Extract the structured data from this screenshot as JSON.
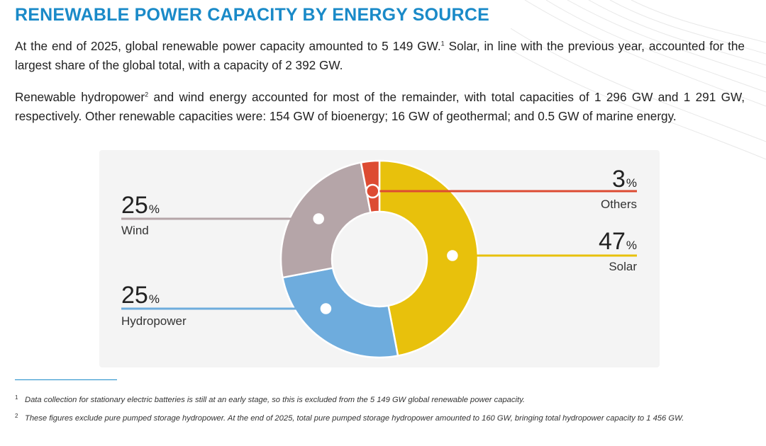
{
  "page": {
    "title": "RENEWABLE POWER CAPACITY BY ENERGY SOURCE",
    "paragraph1": {
      "text_a": "At the end of 2025, global renewable power capacity amounted to 5 149 GW.",
      "sup": "1",
      "text_b": " Solar, in line with the previous year, accounted for the largest share of the global total, with a capacity of 2 392 GW."
    },
    "paragraph2": {
      "text_a": "Renewable hydropower",
      "sup": "2",
      "text_b": " and wind energy accounted for most of the remainder, with total capacities of 1 296 GW and 1 291 GW, respectively. Other renewable capacities were: 154 GW of bioenergy; 16 GW of geothermal; and 0.5 GW of marine energy."
    },
    "footnotes": [
      {
        "mark": "1",
        "text": "Data collection for stationary electric batteries is still at an early stage, so this is excluded from the 5 149 GW global renewable power capacity."
      },
      {
        "mark": "2",
        "text": "These figures exclude pure pumped storage hydropower. At the end of 2025, total pure pumped storage hydropower amounted to 160 GW, bringing total hydropower capacity to 1 456 GW."
      }
    ]
  },
  "colors": {
    "title": "#1a8ac8",
    "solar": "#e8c10c",
    "hydropower": "#6eacdd",
    "wind": "#b5a5a8",
    "others": "#dd4b32",
    "panel": "#f4f4f4"
  },
  "chart_data": {
    "type": "pie",
    "variant": "donut",
    "unit": "%",
    "categories": [
      "Solar",
      "Hydropower",
      "Wind",
      "Others"
    ],
    "values": [
      47,
      25,
      25,
      3
    ],
    "labels": [
      {
        "category": "Solar",
        "value": "47",
        "unit": "%"
      },
      {
        "category": "Hydropower",
        "value": "25",
        "unit": "%"
      },
      {
        "category": "Wind",
        "value": "25",
        "unit": "%"
      },
      {
        "category": "Others",
        "value": "3",
        "unit": "%"
      }
    ],
    "legend": "callout labels"
  }
}
